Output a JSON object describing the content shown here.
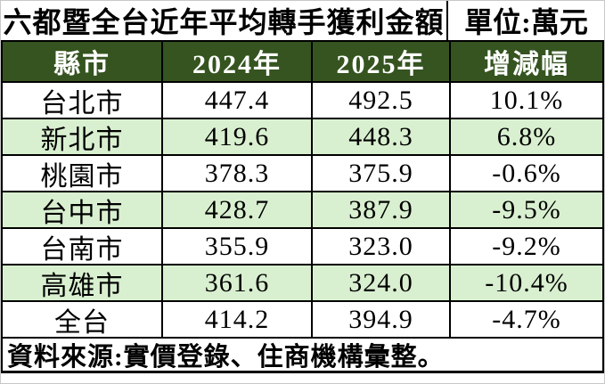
{
  "chart_data": {
    "type": "table",
    "title": "六都暨全台近年平均轉手獲利金額",
    "unit": "單位:萬元",
    "columns": [
      "縣市",
      "2024年",
      "2025年",
      "增減幅"
    ],
    "rows": [
      [
        "台北市",
        "447.4",
        "492.5",
        "10.1%"
      ],
      [
        "新北市",
        "419.6",
        "448.3",
        "6.8%"
      ],
      [
        "桃園市",
        "378.3",
        "375.9",
        "-0.6%"
      ],
      [
        "台中市",
        "428.7",
        "387.9",
        "-9.5%"
      ],
      [
        "台南市",
        "355.9",
        "323.0",
        "-9.2%"
      ],
      [
        "高雄市",
        "361.6",
        "324.0",
        "-10.4%"
      ],
      [
        "全台",
        "414.2",
        "394.9",
        "-4.7%"
      ]
    ],
    "source_note": "資料來源:實價登錄、住商機構彙整。"
  },
  "colors": {
    "header_bg": "#355420",
    "header_text": "#ffffff",
    "row_bg": "#ffffff",
    "row_alt_bg": "#d9f0d0",
    "border_color": "#000000",
    "text_color": "#000000"
  }
}
